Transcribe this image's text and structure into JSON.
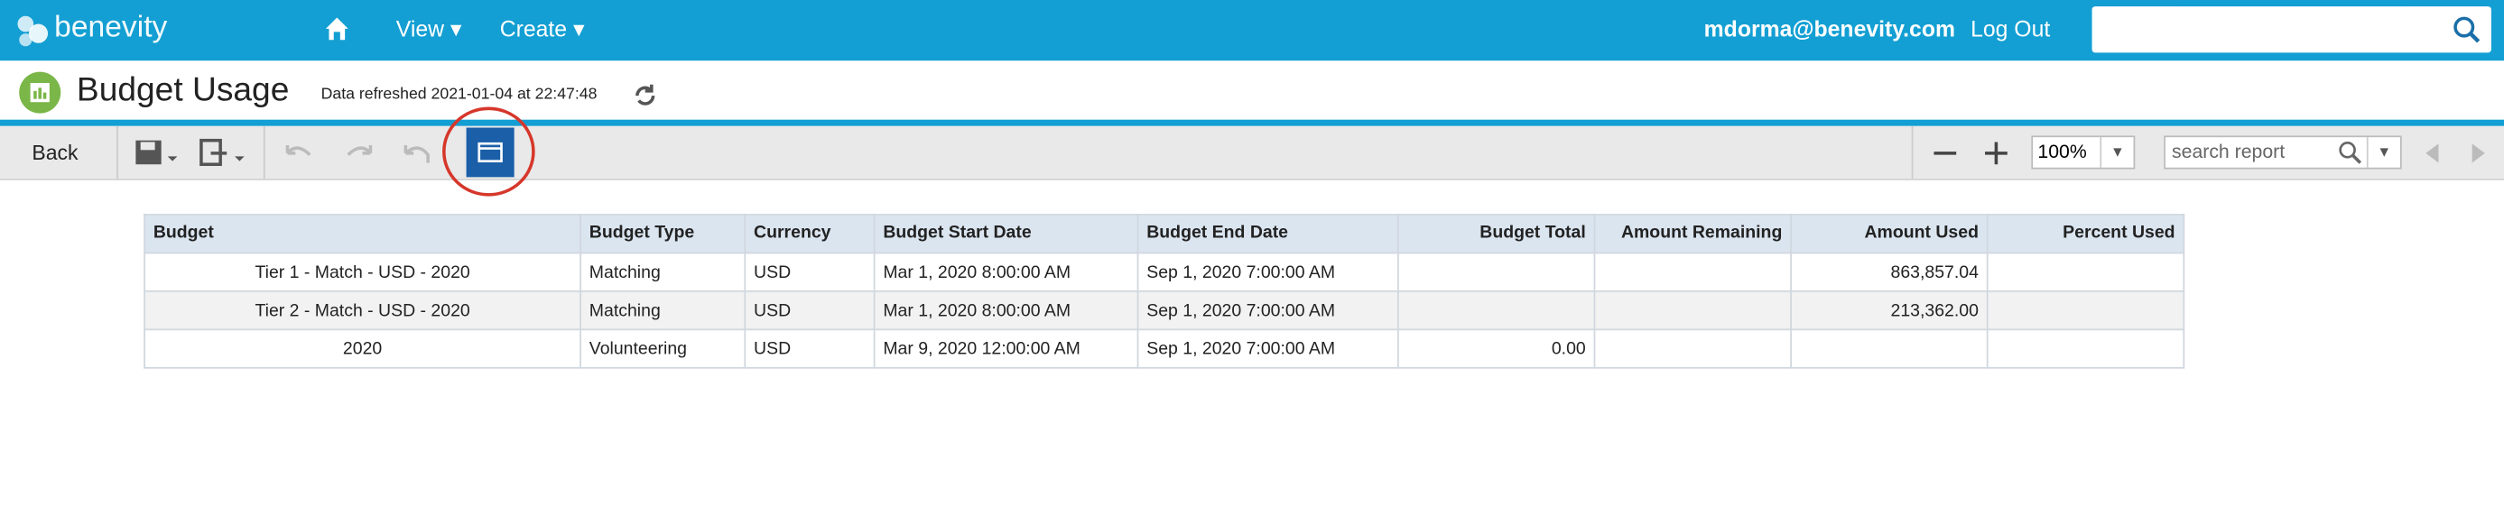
{
  "header": {
    "logo": "benevity",
    "menu": [
      "View",
      "Create"
    ],
    "user": "mdorma@benevity.com",
    "logout": "Log Out"
  },
  "page": {
    "title": "Budget Usage",
    "refreshed": "Data refreshed 2021-01-04 at 22:47:48"
  },
  "toolbar": {
    "back": "Back",
    "zoom": "100%",
    "search_placeholder": "search report"
  },
  "table": {
    "columns": [
      "Budget",
      "Budget Type",
      "Currency",
      "Budget Start Date",
      "Budget End Date",
      "Budget Total",
      "Amount Remaining",
      "Amount Used",
      "Percent Used"
    ],
    "rows": [
      [
        "Tier 1 - Match - USD - 2020",
        "Matching",
        "USD",
        "Mar 1, 2020 8:00:00 AM",
        "Sep 1, 2020 7:00:00 AM",
        null,
        null,
        "863,857.04",
        null
      ],
      [
        "Tier 2 - Match - USD - 2020",
        "Matching",
        "USD",
        "Mar 1, 2020 8:00:00 AM",
        "Sep 1, 2020 7:00:00 AM",
        null,
        null,
        "213,362.00",
        null
      ],
      [
        "2020",
        "Volunteering",
        "USD",
        "Mar 9, 2020 12:00:00 AM",
        "Sep 1, 2020 7:00:00 AM",
        "0.00",
        null,
        null,
        null
      ]
    ]
  }
}
